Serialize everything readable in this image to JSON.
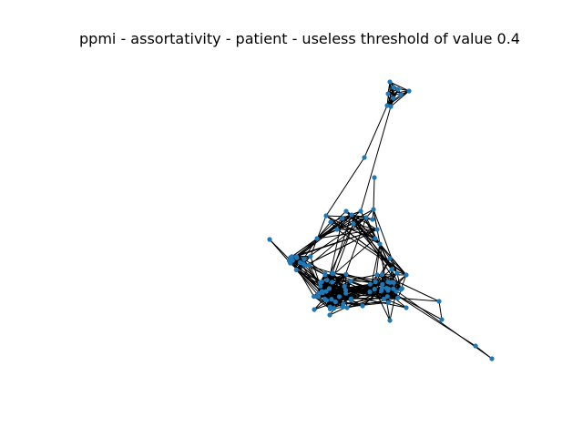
{
  "figure": {
    "title": "ppmi - assortativity - patient - useless threshold of value 0.4"
  },
  "graph": {
    "node_color": "#1f77b4",
    "edge_color": "#000000",
    "node_shape": "circle"
  }
}
